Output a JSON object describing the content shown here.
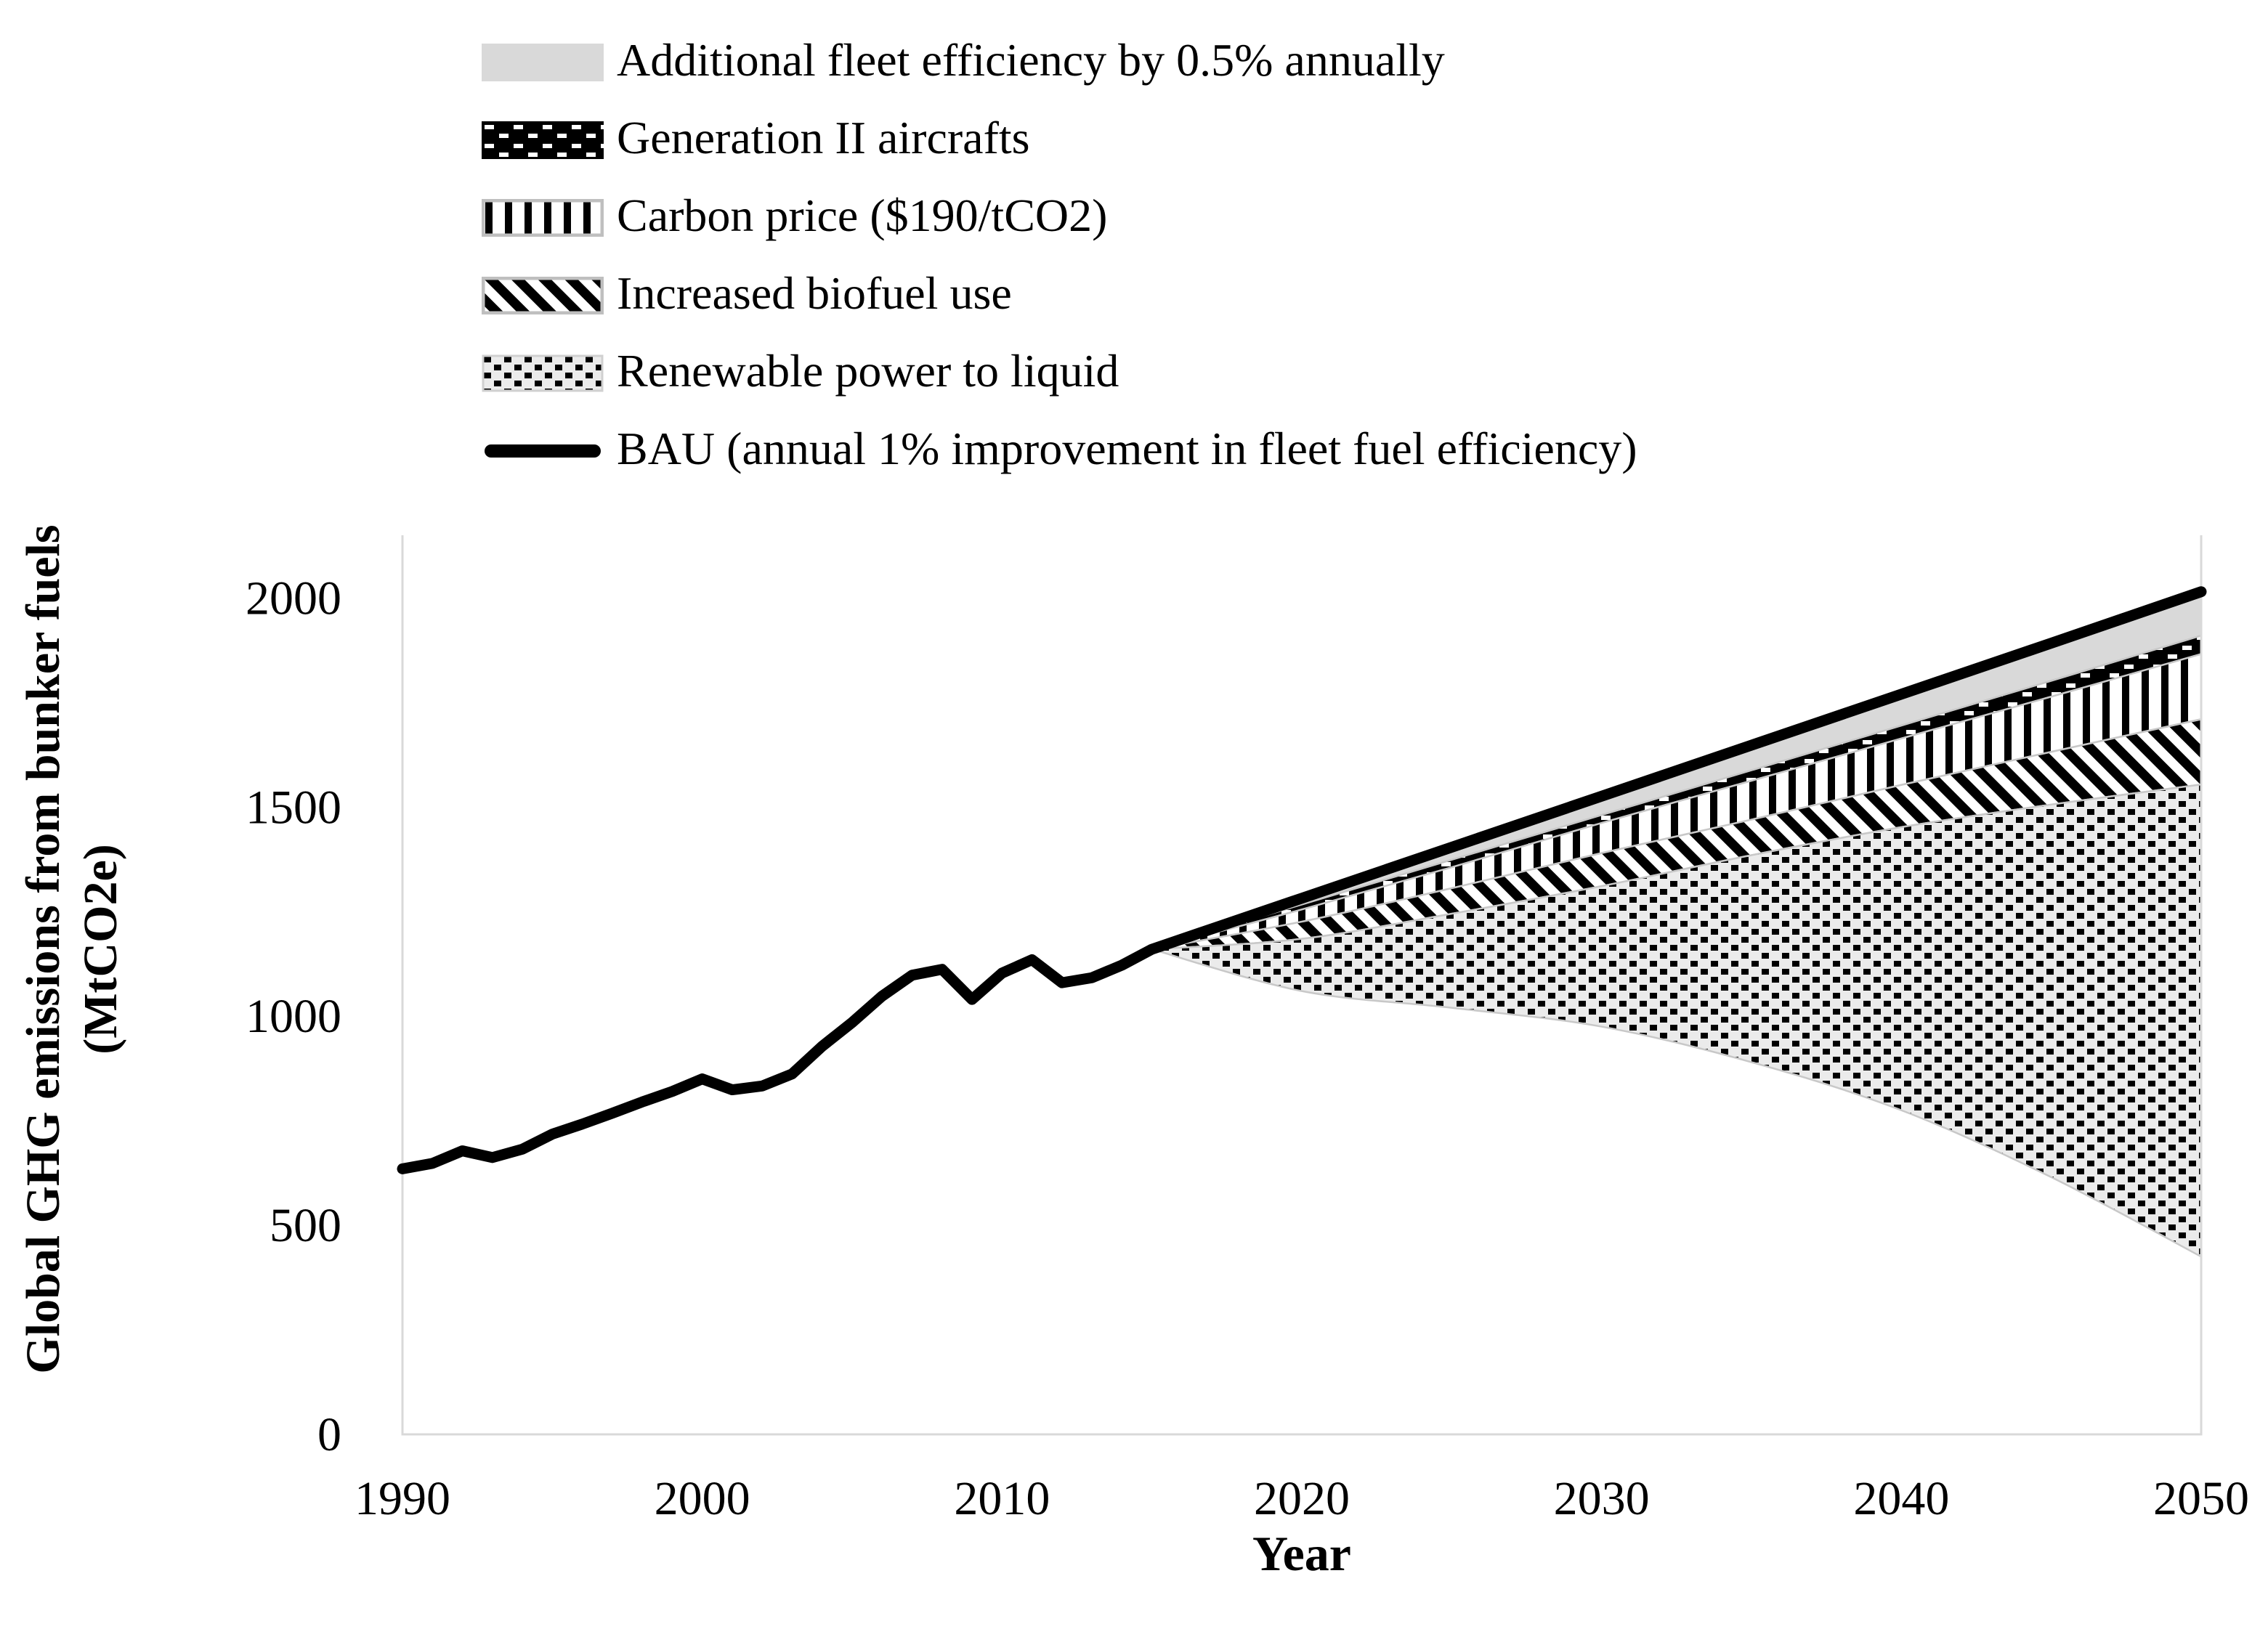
{
  "figure": {
    "background": "#ffffff",
    "text_color": "#000000"
  },
  "chart_data": {
    "type": "area",
    "title": "",
    "xlabel": "Year",
    "ylabel_line1": "Global GHG emissions from bunker fuels",
    "ylabel_line2": "(MtCO2e)",
    "xlim": [
      1990,
      2050
    ],
    "ylim": [
      0,
      2150
    ],
    "x_ticks": [
      1990,
      2000,
      2010,
      2020,
      2030,
      2040,
      2050
    ],
    "y_ticks": [
      0,
      500,
      1000,
      1500,
      2000
    ],
    "grid": "off",
    "legend_position": "top-left",
    "legend": [
      {
        "label": "Additional fleet efficiency by 0.5% annually",
        "swatch": "solid-gray",
        "color": "#d9d9d9"
      },
      {
        "label": "Generation II aircrafts",
        "swatch": "black-white-dashes",
        "color": "#000000"
      },
      {
        "label": "Carbon price ($190/tCO2)",
        "swatch": "vertical-bars",
        "color": "#000000"
      },
      {
        "label": "Increased biofuel use",
        "swatch": "diagonal-stripes",
        "color": "#000000"
      },
      {
        "label": "Renewable power to liquid",
        "swatch": "dotted-grid",
        "color": "#000000"
      },
      {
        "label": "BAU (annual 1% improvement in fleet fuel efficiency)",
        "swatch": "thick-line",
        "color": "#000000"
      }
    ],
    "bau_history": {
      "years": [
        1990,
        1991,
        1992,
        1993,
        1994,
        1995,
        1996,
        1997,
        1998,
        1999,
        2000,
        2001,
        2002,
        2003,
        2004,
        2005,
        2006,
        2007,
        2008,
        2009,
        2010,
        2011,
        2012,
        2013,
        2014,
        2015
      ],
      "values": [
        635,
        648,
        678,
        662,
        682,
        718,
        742,
        768,
        795,
        820,
        850,
        824,
        833,
        862,
        928,
        985,
        1048,
        1098,
        1112,
        1040,
        1103,
        1135,
        1080,
        1092,
        1122,
        1160
      ]
    },
    "scenario_years": [
      2015,
      2020,
      2025,
      2030,
      2035,
      2040,
      2045,
      2050
    ],
    "boundaries": {
      "bau": [
        1160,
        1282,
        1404,
        1526,
        1648,
        1770,
        1892,
        2015
      ],
      "after_fleet_efficiency": [
        1160,
        1267,
        1374,
        1481,
        1588,
        1695,
        1802,
        1910
      ],
      "after_generation2_aircrafts": [
        1160,
        1255,
        1356,
        1462,
        1563,
        1664,
        1764,
        1866
      ],
      "after_carbon_price": [
        1160,
        1226,
        1306,
        1390,
        1470,
        1553,
        1632,
        1710
      ],
      "after_increased_biofuel": [
        1160,
        1185,
        1245,
        1311,
        1385,
        1452,
        1506,
        1554
      ],
      "after_renewable_ptl": [
        1160,
        1060,
        1020,
        975,
        890,
        775,
        615,
        425
      ]
    },
    "band_separator_color": "#c8c8c8",
    "axis_box_color": "#d9d9d9"
  }
}
